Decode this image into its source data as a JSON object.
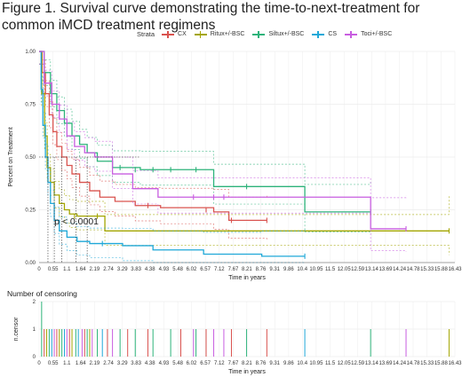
{
  "figure": {
    "title": "Figure 1. Survival curve demonstrating the time-to-next-treatment for common iMCD treatment regimens"
  },
  "legend": {
    "title": "Strata",
    "items": [
      {
        "label": "CX",
        "color": "#d9534f"
      },
      {
        "label": "Ritux+/-BSC",
        "color": "#a3a500"
      },
      {
        "label": "Siltux+/-BSC",
        "color": "#2db37a"
      },
      {
        "label": "CS",
        "color": "#1fa8d8"
      },
      {
        "label": "Toci+/-BSC",
        "color": "#c85de0"
      }
    ]
  },
  "chart_data": [
    {
      "type": "line",
      "subtype": "kaplan-meier",
      "title": "",
      "xlabel": "Time in years",
      "ylabel": "Percent on Treatment",
      "xlim": [
        0,
        16.43
      ],
      "ylim": [
        0,
        1
      ],
      "x_ticks": [
        "0",
        "0.55",
        "1.1",
        "1.64",
        "2.19",
        "2.74",
        "3.29",
        "3.83",
        "4.38",
        "4.93",
        "5.48",
        "6.02",
        "6.57",
        "7.12",
        "7.67",
        "8.21",
        "8.76",
        "9.31",
        "9.86",
        "10.4",
        "10.95",
        "11.5",
        "12.05",
        "12.59",
        "13.14",
        "13.69",
        "14.24",
        "14.78",
        "15.33",
        "15.88",
        "16.43"
      ],
      "y_ticks": [
        "0.00",
        "0.25",
        "0.50",
        "0.75",
        "1.00"
      ],
      "grid": true,
      "annotation": "p < 0.0001",
      "series": [
        {
          "name": "CX",
          "color": "#d9534f",
          "steps": [
            [
              0,
              1.0
            ],
            [
              0.12,
              0.9
            ],
            [
              0.25,
              0.8
            ],
            [
              0.4,
              0.7
            ],
            [
              0.55,
              0.62
            ],
            [
              0.7,
              0.55
            ],
            [
              0.9,
              0.5
            ],
            [
              1.1,
              0.46
            ],
            [
              1.3,
              0.42
            ],
            [
              1.6,
              0.38
            ],
            [
              2.0,
              0.34
            ],
            [
              2.4,
              0.31
            ],
            [
              3.0,
              0.29
            ],
            [
              3.8,
              0.27
            ],
            [
              4.8,
              0.26
            ],
            [
              6.9,
              0.24
            ],
            [
              7.5,
              0.2
            ],
            [
              9.0,
              0.2
            ]
          ],
          "censor": [
            [
              4.3,
              0.27
            ],
            [
              6.6,
              0.25
            ],
            [
              7.6,
              0.2
            ],
            [
              9.0,
              0.2
            ]
          ]
        },
        {
          "name": "Ritux+/-BSC",
          "color": "#a3a500",
          "steps": [
            [
              0,
              1.0
            ],
            [
              0.1,
              0.8
            ],
            [
              0.22,
              0.6
            ],
            [
              0.32,
              0.45
            ],
            [
              0.45,
              0.38
            ],
            [
              0.6,
              0.32
            ],
            [
              0.8,
              0.28
            ],
            [
              1.0,
              0.25
            ],
            [
              1.2,
              0.23
            ],
            [
              1.5,
              0.22
            ],
            [
              2.6,
              0.15
            ],
            [
              16.2,
              0.15
            ]
          ],
          "censor": [
            [
              1.4,
              0.22
            ],
            [
              2.3,
              0.22
            ],
            [
              16.2,
              0.15
            ]
          ]
        },
        {
          "name": "Siltux+/-BSC",
          "color": "#2db37a",
          "steps": [
            [
              0,
              1.0
            ],
            [
              0.2,
              0.9
            ],
            [
              0.45,
              0.8
            ],
            [
              0.7,
              0.72
            ],
            [
              1.0,
              0.66
            ],
            [
              1.3,
              0.6
            ],
            [
              1.6,
              0.56
            ],
            [
              1.9,
              0.52
            ],
            [
              2.3,
              0.48
            ],
            [
              2.9,
              0.45
            ],
            [
              4.0,
              0.44
            ],
            [
              6.9,
              0.36
            ],
            [
              10.5,
              0.24
            ],
            [
              13.1,
              0.24
            ]
          ],
          "censor": [
            [
              3.2,
              0.45
            ],
            [
              3.8,
              0.44
            ],
            [
              4.5,
              0.44
            ],
            [
              5.2,
              0.44
            ],
            [
              6.2,
              0.44
            ],
            [
              8.2,
              0.36
            ],
            [
              13.1,
              0.24
            ]
          ]
        },
        {
          "name": "CS",
          "color": "#1fa8d8",
          "steps": [
            [
              0,
              1.0
            ],
            [
              0.08,
              0.82
            ],
            [
              0.15,
              0.65
            ],
            [
              0.25,
              0.5
            ],
            [
              0.35,
              0.38
            ],
            [
              0.45,
              0.28
            ],
            [
              0.6,
              0.2
            ],
            [
              0.8,
              0.15
            ],
            [
              1.1,
              0.12
            ],
            [
              1.5,
              0.1
            ],
            [
              2.0,
              0.09
            ],
            [
              3.3,
              0.08
            ],
            [
              4.5,
              0.06
            ],
            [
              6.5,
              0.04
            ],
            [
              8.8,
              0.03
            ],
            [
              10.5,
              0.03
            ]
          ],
          "censor": [
            [
              2.5,
              0.09
            ],
            [
              10.5,
              0.03
            ]
          ]
        },
        {
          "name": "Toci+/-BSC",
          "color": "#c85de0",
          "steps": [
            [
              0,
              1.0
            ],
            [
              0.2,
              0.85
            ],
            [
              0.5,
              0.75
            ],
            [
              0.8,
              0.68
            ],
            [
              1.1,
              0.6
            ],
            [
              1.4,
              0.55
            ],
            [
              1.8,
              0.52
            ],
            [
              2.2,
              0.5
            ],
            [
              2.9,
              0.42
            ],
            [
              3.7,
              0.35
            ],
            [
              4.7,
              0.31
            ],
            [
              13.1,
              0.16
            ],
            [
              14.5,
              0.16
            ]
          ],
          "censor": [
            [
              6.1,
              0.31
            ],
            [
              6.9,
              0.31
            ],
            [
              7.3,
              0.31
            ],
            [
              14.5,
              0.16
            ]
          ]
        }
      ]
    },
    {
      "type": "bar",
      "title": "Number of censoring",
      "xlabel": "Time in years",
      "ylabel": "n.censor",
      "xlim": [
        0,
        16.43
      ],
      "ylim": [
        0,
        2
      ],
      "y_ticks": [
        "0",
        "1",
        "2"
      ],
      "events": [
        {
          "x": 0.1,
          "n": 2,
          "series": "Siltux+/-BSC"
        },
        {
          "x": 0.2,
          "n": 1,
          "series": "CX"
        },
        {
          "x": 0.3,
          "n": 1,
          "series": "Ritux+/-BSC"
        },
        {
          "x": 0.4,
          "n": 1,
          "series": "Siltux+/-BSC"
        },
        {
          "x": 0.5,
          "n": 1,
          "series": "CS"
        },
        {
          "x": 0.6,
          "n": 1,
          "series": "Toci+/-BSC"
        },
        {
          "x": 0.7,
          "n": 1,
          "series": "CX"
        },
        {
          "x": 0.8,
          "n": 1,
          "series": "Ritux+/-BSC"
        },
        {
          "x": 0.9,
          "n": 1,
          "series": "Siltux+/-BSC"
        },
        {
          "x": 1.0,
          "n": 1,
          "series": "CS"
        },
        {
          "x": 1.1,
          "n": 1,
          "series": "Toci+/-BSC"
        },
        {
          "x": 1.2,
          "n": 1,
          "series": "CX"
        },
        {
          "x": 1.3,
          "n": 1,
          "series": "Ritux+/-BSC"
        },
        {
          "x": 1.45,
          "n": 1,
          "series": "Siltux+/-BSC"
        },
        {
          "x": 1.55,
          "n": 1,
          "series": "CS"
        },
        {
          "x": 1.7,
          "n": 1,
          "series": "Toci+/-BSC"
        },
        {
          "x": 1.8,
          "n": 1,
          "series": "CX"
        },
        {
          "x": 1.9,
          "n": 1,
          "series": "Siltux+/-BSC"
        },
        {
          "x": 2.0,
          "n": 1,
          "series": "Ritux+/-BSC"
        },
        {
          "x": 2.1,
          "n": 1,
          "series": "Toci+/-BSC"
        },
        {
          "x": 2.3,
          "n": 1,
          "series": "Siltux+/-BSC"
        },
        {
          "x": 2.5,
          "n": 1,
          "series": "CS"
        },
        {
          "x": 2.7,
          "n": 1,
          "series": "CX"
        },
        {
          "x": 2.9,
          "n": 1,
          "series": "Toci+/-BSC"
        },
        {
          "x": 3.2,
          "n": 1,
          "series": "Siltux+/-BSC"
        },
        {
          "x": 3.5,
          "n": 1,
          "series": "CX"
        },
        {
          "x": 3.8,
          "n": 1,
          "series": "Siltux+/-BSC"
        },
        {
          "x": 4.3,
          "n": 1,
          "series": "CX"
        },
        {
          "x": 4.5,
          "n": 1,
          "series": "Siltux+/-BSC"
        },
        {
          "x": 5.2,
          "n": 1,
          "series": "Siltux+/-BSC"
        },
        {
          "x": 5.6,
          "n": 1,
          "series": "CX"
        },
        {
          "x": 6.1,
          "n": 1,
          "series": "Toci+/-BSC"
        },
        {
          "x": 6.2,
          "n": 1,
          "series": "Siltux+/-BSC"
        },
        {
          "x": 6.6,
          "n": 1,
          "series": "CX"
        },
        {
          "x": 6.9,
          "n": 1,
          "series": "Toci+/-BSC"
        },
        {
          "x": 7.3,
          "n": 1,
          "series": "Toci+/-BSC"
        },
        {
          "x": 7.6,
          "n": 1,
          "series": "CX"
        },
        {
          "x": 8.2,
          "n": 1,
          "series": "Siltux+/-BSC"
        },
        {
          "x": 9.0,
          "n": 1,
          "series": "CX"
        },
        {
          "x": 10.5,
          "n": 1,
          "series": "CS"
        },
        {
          "x": 13.1,
          "n": 1,
          "series": "Siltux+/-BSC"
        },
        {
          "x": 14.5,
          "n": 1,
          "series": "Toci+/-BSC"
        },
        {
          "x": 16.2,
          "n": 1,
          "series": "Ritux+/-BSC"
        }
      ]
    }
  ]
}
